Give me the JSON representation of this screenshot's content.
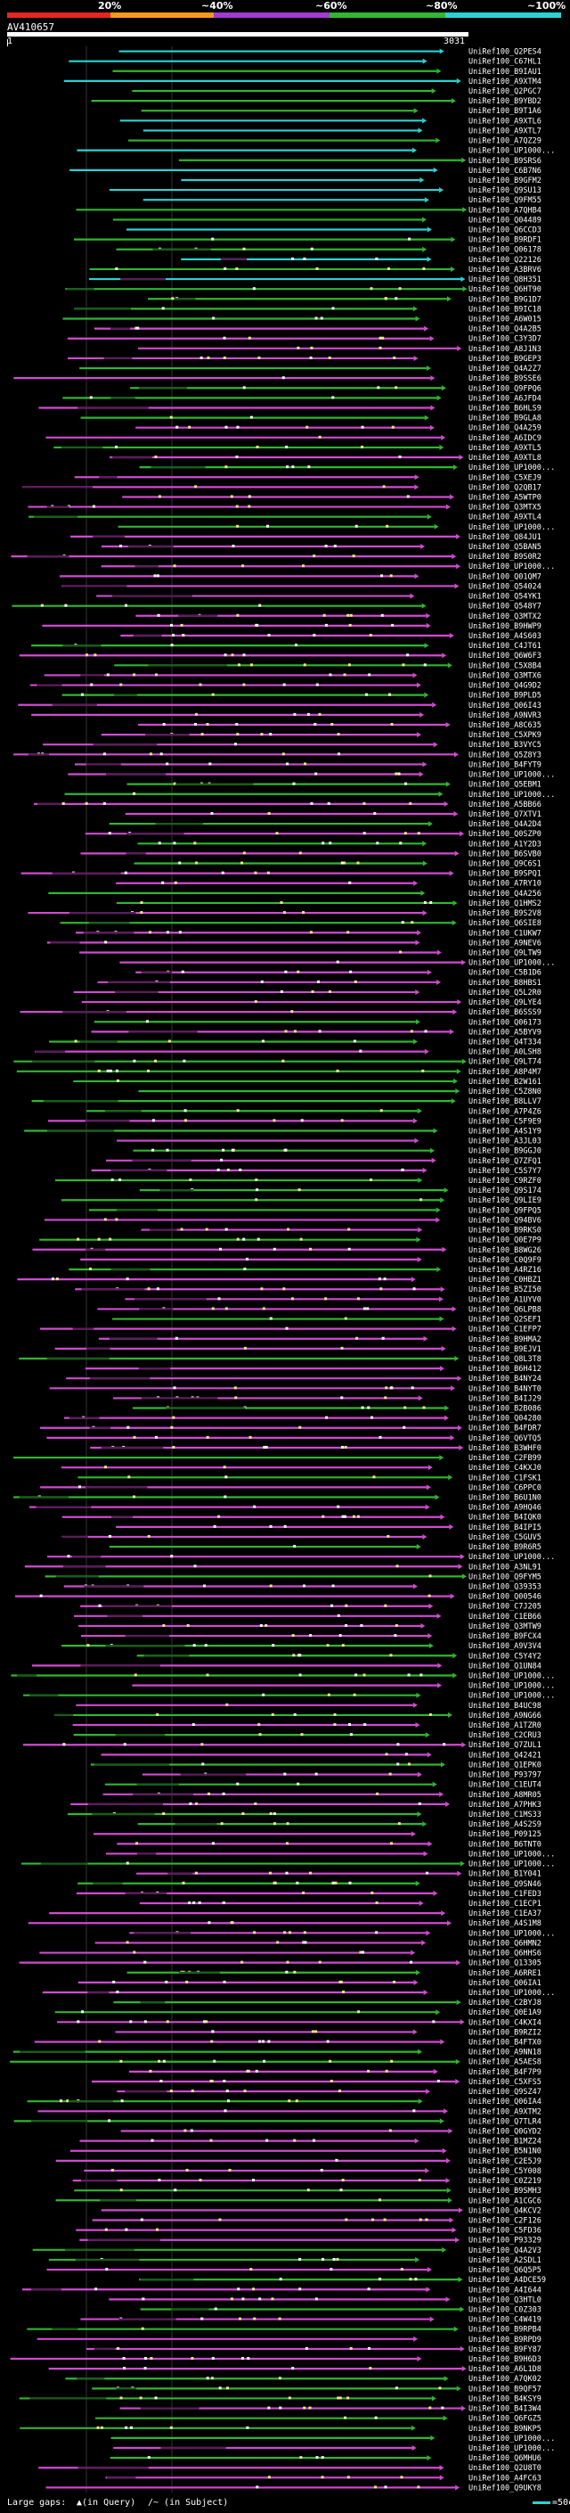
{
  "legend": {
    "segments": [
      {
        "label": "20%",
        "color": "#e6261f"
      },
      {
        "label": "~40%",
        "color": "#f59a1d"
      },
      {
        "label": "~60%",
        "color": "#a23bd1"
      },
      {
        "label": "~80%",
        "color": "#30b630"
      },
      {
        "label": "~100%",
        "color": "#2ad3d3"
      }
    ]
  },
  "query": {
    "title": "AV410657",
    "start": "1",
    "end": "3031"
  },
  "colors": {
    "cyan": "#2ad3d3",
    "green": "#30b630",
    "magenta": "#d24ad2",
    "dark_green": "#1a5c1a",
    "dark_magenta": "#5a1d5a"
  },
  "hits": [
    "UniRef100_Q2PES4",
    "UniRef100_C67HL1",
    "UniRef100_B9IAU1",
    "UniRef100_A9XTM4",
    "UniRef100_Q2PGC7",
    "UniRef100_B9YBD2",
    "UniRef100_B9T1A6",
    "UniRef100_A9XTL6",
    "UniRef100_A9XTL7",
    "UniRef100_A7QZ29",
    "UniRef100_UP1000...",
    "UniRef100_B9SRS6",
    "UniRef100_C6B7N6",
    "UniRef100_B9GFM2",
    "UniRef100_Q9SU13",
    "UniRef100_Q9FM55",
    "UniRef100_A7QHB4",
    "UniRef100_Q04489",
    "UniRef100_Q6CCD3",
    "UniRef100_B9RDF1",
    "UniRef100_Q06178",
    "UniRef100_Q22126",
    "UniRef100_A3BRV6",
    "UniRef100_Q8H351",
    "UniRef100_Q6HT90",
    "UniRef100_B9G1D7",
    "UniRef100_B9IC18",
    "UniRef100_A6W015",
    "UniRef100_Q4A2B5",
    "UniRef100_C3Y3D7",
    "UniRef100_A8J1N3",
    "UniRef100_B9GEP3",
    "UniRef100_Q4A2Z7",
    "UniRef100_B9SSE6",
    "UniRef100_Q9FPQ6",
    "UniRef100_A6JFD4",
    "UniRef100_B6HLS9",
    "UniRef100_B9GLA8",
    "UniRef100_Q4A259",
    "UniRef100_A6IDC9",
    "UniRef100_A9XTL5",
    "UniRef100_A9XTL8",
    "UniRef100_UP1000...",
    "UniRef100_C5XEJ9",
    "UniRef100_Q2QB17",
    "UniRef100_A5WTP0",
    "UniRef100_Q3MTX5",
    "UniRef100_A9XTL4",
    "UniRef100_UP1000...",
    "UniRef100_Q84JU1",
    "UniRef100_Q5BAN5",
    "UniRef100_B9S0R2",
    "UniRef100_UP1000...",
    "UniRef100_Q01QM7",
    "UniRef100_Q54024",
    "UniRef100_Q54YK1",
    "UniRef100_Q548Y7",
    "UniRef100_Q3MTX2",
    "UniRef100_B9HWP9",
    "UniRef100_A4S603",
    "UniRef100_C4JT61",
    "UniRef100_Q6W6F3",
    "UniRef100_C5X8B4",
    "UniRef100_Q3MTX6",
    "UniRef100_Q4G9D2",
    "UniRef100_B9PLD5",
    "UniRef100_Q06I43",
    "UniRef100_A9NVR3",
    "UniRef100_A8C635",
    "UniRef100_C5XPK9",
    "UniRef100_B3VYC5",
    "UniRef100_Q5Z8Y3",
    "UniRef100_B4FYT9",
    "UniRef100_UP1000...",
    "UniRef100_Q5EBM1",
    "UniRef100_UP1000...",
    "UniRef100_A5BB66",
    "UniRef100_Q7XTV1",
    "UniRef100_Q4A2D4",
    "UniRef100_Q0SZP0",
    "UniRef100_A1Y2D3",
    "UniRef100_B6SVB0",
    "UniRef100_Q9C6S1",
    "UniRef100_B9SPQ1",
    "UniRef100_A7RY10",
    "UniRef100_Q4A256",
    "UniRef100_Q1HMS2",
    "UniRef100_B9S2V8",
    "UniRef100_Q6SIE8",
    "UniRef100_C1UKW7",
    "UniRef100_A9NEV6",
    "UniRef100_Q9LTW9",
    "UniRef100_UP1000...",
    "UniRef100_C5B1D6",
    "UniRef100_B8HBS1",
    "UniRef100_Q5L2R0",
    "UniRef100_Q9LYE4",
    "UniRef100_B6SSS9",
    "UniRef100_Q06173",
    "UniRef100_A5BYV9",
    "UniRef100_Q4T334",
    "UniRef100_A0LSH8",
    "UniRef100_Q9LT74",
    "UniRef100_A8P4M7",
    "UniRef100_B2W161",
    "UniRef100_C5Z8N0",
    "UniRef100_B8LLV7",
    "UniRef100_A7P4Z6",
    "UniRef100_C5F9E9",
    "UniRef100_A4S1Y9",
    "UniRef100_A3JL03",
    "UniRef100_B9GGJ0",
    "UniRef100_Q7ZFQ1",
    "UniRef100_C5S7Y7",
    "UniRef100_C9RZF0",
    "UniRef100_Q9S174",
    "UniRef100_Q9LIE9",
    "UniRef100_Q9FPQ5",
    "UniRef100_Q94BV6",
    "UniRef100_B9RKS0",
    "UniRef100_Q0E7P9",
    "UniRef100_B8WG26",
    "UniRef100_C0Q9F9",
    "UniRef100_A4RZ16",
    "UniRef100_C0HBZ1",
    "UniRef100_B5ZI50",
    "UniRef100_A1UYV0",
    "UniRef100_Q6LPB8",
    "UniRef100_Q2SEF1",
    "UniRef100_C1EFP7",
    "UniRef100_B9HMA2",
    "UniRef100_B9EJV1",
    "UniRef100_Q8L3T8",
    "UniRef100_B6H412",
    "UniRef100_B4NY24",
    "UniRef100_B4NYT0",
    "UniRef100_B4IJ29",
    "UniRef100_B2B086",
    "UniRef100_Q04280",
    "UniRef100_B4FDR7",
    "UniRef100_Q6VTQ5",
    "UniRef100_B3WHF0",
    "UniRef100_C2FB99",
    "UniRef100_C4KXJ0",
    "UniRef100_C1FSK1",
    "UniRef100_C6PPC0",
    "UniRef100_B6U1N0",
    "UniRef100_A9HQ46",
    "UniRef100_B4IQK0",
    "UniRef100_B4IPI5",
    "UniRef100_C5GUV5",
    "UniRef100_B9R6R5",
    "UniRef100_UP1000...",
    "UniRef100_A3NL91",
    "UniRef100_Q9FYM5",
    "UniRef100_Q39353",
    "UniRef100_Q00546",
    "UniRef100_C7J205",
    "UniRef100_C1EB66",
    "UniRef100_Q3MTW9",
    "UniRef100_B9FCX4",
    "UniRef100_A9V3V4",
    "UniRef100_C5Y4Y2",
    "UniRef100_Q1UN84",
    "UniRef100_UP1000...",
    "UniRef100_UP1000...",
    "UniRef100_UP1000...",
    "UniRef100_B4UC98",
    "UniRef100_A9NG66",
    "UniRef100_A1TZR0",
    "UniRef100_C2CRU3",
    "UniRef100_Q7ZUL1",
    "UniRef100_Q42421",
    "UniRef100_Q1EPK0",
    "UniRef100_P93797",
    "UniRef100_C1EUT4",
    "UniRef100_A8MR05",
    "UniRef100_A7PHK3",
    "UniRef100_C1MS33",
    "UniRef100_A4S2S9",
    "UniRef100_P09125",
    "UniRef100_B6TNT0",
    "UniRef100_UP1000...",
    "UniRef100_UP1000...",
    "UniRef100_B1Y041",
    "UniRef100_Q9SN46",
    "UniRef100_C1FED3",
    "UniRef100_C1ECP1",
    "UniRef100_C1EA37",
    "UniRef100_A4S1M8",
    "UniRef100_UP1000...",
    "UniRef100_Q6HMN2",
    "UniRef100_Q6HHS6",
    "UniRef100_Q13305",
    "UniRef100_A6RRE1",
    "UniRef100_Q06IA1",
    "UniRef100_UP1000...",
    "UniRef100_C2BYJ8",
    "UniRef100_Q0E1A9",
    "UniRef100_C4KXI4",
    "UniRef100_B9RZI2",
    "UniRef100_B4FTX0",
    "UniRef100_A9NN18",
    "UniRef100_A5AES8",
    "UniRef100_B4F7P9",
    "UniRef100_C5XFS5",
    "UniRef100_Q9SZ47",
    "UniRef100_Q06IA4",
    "UniRef100_A9XTM2",
    "UniRef100_Q7TLR4",
    "UniRef100_Q0GYD2",
    "UniRef100_B1MZ24",
    "UniRef100_B5N1N0",
    "UniRef100_C2E5J9",
    "UniRef100_C5Y008",
    "UniRef100_C0Z219",
    "UniRef100_B9SMH3",
    "UniRef100_A1CGC6",
    "UniRef100_Q4KCV2",
    "UniRef100_C2F126",
    "UniRef100_C5FD36",
    "UniRef100_P93329",
    "UniRef100_Q4A2V3",
    "UniRef100_A2SDL1",
    "UniRef100_Q6Q5P5",
    "UniRef100_A4DCE59",
    "UniRef100_A4I644",
    "UniRef100_Q3HTL0",
    "UniRef100_C0Z303",
    "UniRef100_C4W419",
    "UniRef100_B9RPB4",
    "UniRef100_B9RPD9",
    "UniRef100_B9FY87",
    "UniRef100_B9H6D3",
    "UniRef100_A6L1D8",
    "UniRef100_A7QK02",
    "UniRef100_B9QF57",
    "UniRef100_B4KSY9",
    "UniRef100_B4I3W4",
    "UniRef100_Q6FGZ5",
    "UniRef100_B9NKP5",
    "UniRef100_UP1000...",
    "UniRef100_UP1000...",
    "UniRef100_Q6MHU6",
    "UniRef100_Q2U8T0",
    "UniRef100_A4FC63",
    "UniRef100_Q9UKY8"
  ],
  "footer": {
    "large_gaps_label": "Large gaps:",
    "in_query_label": "▲(in Query)",
    "in_subject_label": "/~ (in Subject)",
    "scale_label": "=50char."
  }
}
